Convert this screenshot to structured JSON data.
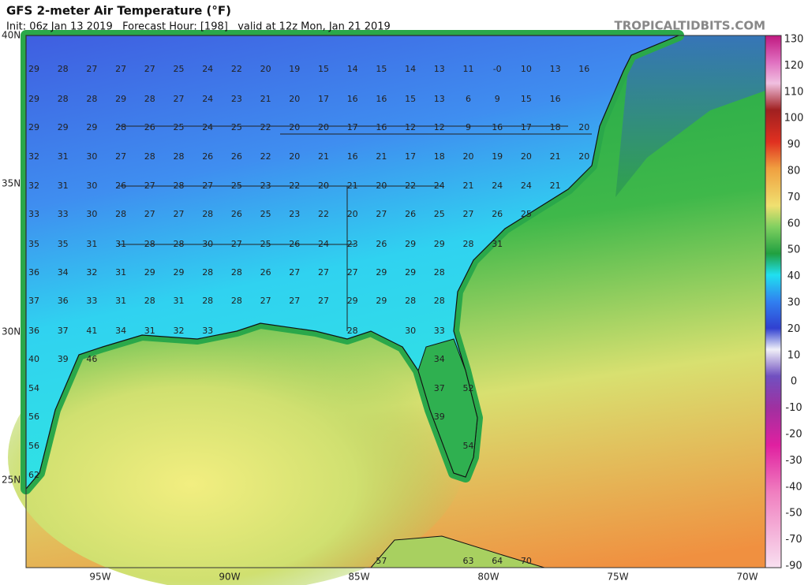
{
  "header": {
    "title": "GFS 2-meter Air Temperature (°F)",
    "subtitle": "Init: 06z Jan 13 2019   Forecast Hour: [198]   valid at 12z Mon, Jan 21 2019",
    "brand": "TROPICALTIDBITS.COM"
  },
  "map": {
    "lat_labels": [
      "40N",
      "35N",
      "30N",
      "25N"
    ],
    "lon_labels": [
      "95W",
      "90W",
      "85W",
      "80W",
      "75W",
      "70W"
    ],
    "station_temps": [
      [
        "29",
        "28",
        "27",
        "27",
        "27",
        "25",
        "24",
        "22",
        "20",
        "19",
        "15",
        "14",
        "15",
        "14",
        "13",
        "11",
        "-0",
        "10",
        "13",
        "16"
      ],
      [
        "29",
        "28",
        "28",
        "29",
        "28",
        "27",
        "24",
        "23",
        "21",
        "20",
        "17",
        "16",
        "16",
        "15",
        "13",
        "6",
        "9",
        "15",
        "16"
      ],
      [
        "29",
        "29",
        "29",
        "28",
        "26",
        "25",
        "24",
        "25",
        "22",
        "20",
        "20",
        "17",
        "16",
        "12",
        "12",
        "9",
        "16",
        "17",
        "18",
        "20"
      ],
      [
        "32",
        "31",
        "30",
        "27",
        "28",
        "28",
        "26",
        "26",
        "22",
        "20",
        "21",
        "16",
        "21",
        "17",
        "18",
        "20",
        "19",
        "20",
        "21",
        "20"
      ],
      [
        "32",
        "31",
        "30",
        "26",
        "27",
        "28",
        "27",
        "25",
        "23",
        "22",
        "20",
        "21",
        "20",
        "22",
        "24",
        "21",
        "24",
        "24",
        "21"
      ],
      [
        "33",
        "33",
        "30",
        "28",
        "27",
        "27",
        "28",
        "26",
        "25",
        "23",
        "22",
        "20",
        "27",
        "26",
        "25",
        "27",
        "26",
        "25"
      ],
      [
        "35",
        "35",
        "31",
        "31",
        "28",
        "28",
        "30",
        "27",
        "25",
        "26",
        "24",
        "23",
        "26",
        "29",
        "29",
        "28",
        "31"
      ],
      [
        "36",
        "34",
        "32",
        "31",
        "29",
        "29",
        "28",
        "28",
        "26",
        "27",
        "27",
        "27",
        "29",
        "29",
        "28"
      ],
      [
        "37",
        "36",
        "33",
        "31",
        "28",
        "31",
        "28",
        "28",
        "27",
        "27",
        "27",
        "29",
        "29",
        "28",
        "28"
      ],
      [
        "36",
        "37",
        "41",
        "34",
        "31",
        "32",
        "33",
        "28",
        "30",
        "33"
      ],
      [
        "40",
        "39",
        "46",
        "34"
      ],
      [
        "54",
        "37",
        "52"
      ],
      [
        "56",
        "39"
      ],
      [
        "56",
        "54"
      ],
      [
        "62"
      ],
      [
        "57",
        "63",
        "64",
        "70"
      ]
    ]
  },
  "colorbar": {
    "ticks": [
      "130",
      "120",
      "110",
      "100",
      "90",
      "80",
      "70",
      "60",
      "50",
      "40",
      "30",
      "20",
      "10",
      "0",
      "-10",
      "-20",
      "-30",
      "-40",
      "-50",
      "-70",
      "-90"
    ]
  }
}
